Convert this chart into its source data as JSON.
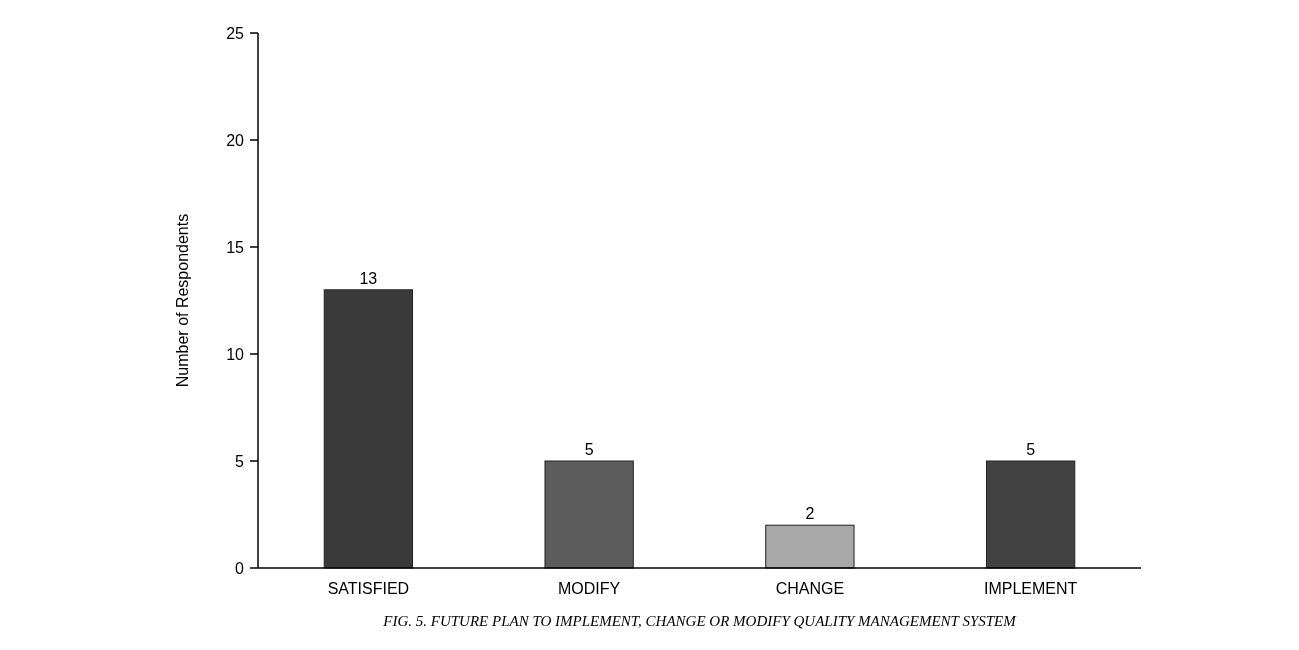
{
  "chart_data": {
    "type": "bar",
    "ylabel": "Number of Respondents",
    "categories": [
      "SATISFIED",
      "MODIFY",
      "CHANGE",
      "IMPLEMENT"
    ],
    "values": [
      13,
      5,
      2,
      5
    ],
    "colors": [
      "#3a3a3a",
      "#5c5c5c",
      "#a9a9a9",
      "#424242"
    ],
    "ylim": [
      0,
      25
    ],
    "yticks": [
      0,
      5,
      10,
      15,
      20,
      25
    ],
    "grid": false,
    "data_labels": true,
    "annotations": [
      "FIG. 5. FUTURE PLAN TO IMPLEMENT, CHANGE OR MODIFY QUALITY MANAGEMENT SYSTEM"
    ]
  }
}
